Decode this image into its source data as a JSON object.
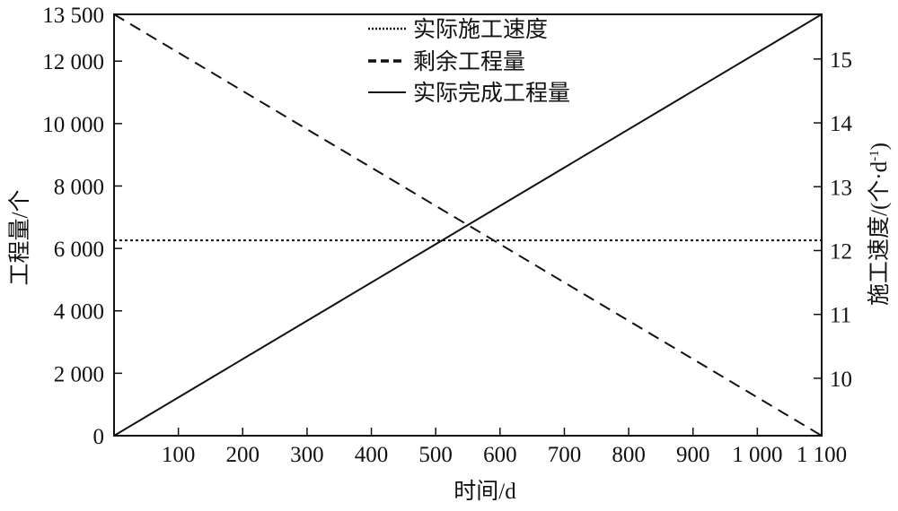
{
  "chart_data": {
    "type": "line",
    "xlabel": "时间/d",
    "ylabel_left": "工程量/个",
    "ylabel_right_main": "施工速度/(个·d",
    "ylabel_right_sup": "-1",
    "ylabel_right_close": ")",
    "xlim": [
      0,
      1100
    ],
    "ylim_left": [
      0,
      13500
    ],
    "ylim_right": [
      9.1,
      15.7
    ],
    "x_ticks": [
      100,
      200,
      300,
      400,
      500,
      600,
      700,
      800,
      900,
      1000,
      1100
    ],
    "x_tick_labels": [
      "100",
      "200",
      "300",
      "400",
      "500",
      "600",
      "700",
      "800",
      "900",
      "1 000",
      "1 100"
    ],
    "y_left_ticks": [
      0,
      2000,
      4000,
      6000,
      8000,
      10000,
      12000,
      13500
    ],
    "y_left_tick_labels": [
      "0",
      "2 000",
      "4 000",
      "6 000",
      "8 000",
      "10 000",
      "12 000",
      "13 500"
    ],
    "y_right_ticks": [
      10,
      11,
      12,
      13,
      14,
      15
    ],
    "y_right_tick_labels": [
      "10",
      "11",
      "12",
      "13",
      "14",
      "15"
    ],
    "grid": false,
    "legend_position": "top-center",
    "series": [
      {
        "name": "实际施工速度",
        "axis": "right",
        "style": "dotted",
        "x": [
          0,
          1100
        ],
        "y": [
          12.16,
          12.16
        ]
      },
      {
        "name": "剩余工程量",
        "axis": "left",
        "style": "dashed",
        "x": [
          0,
          1100
        ],
        "y": [
          13500,
          0
        ]
      },
      {
        "name": "实际完成工程量",
        "axis": "left",
        "style": "solid",
        "x": [
          0,
          1100
        ],
        "y": [
          0,
          13500
        ]
      }
    ]
  }
}
